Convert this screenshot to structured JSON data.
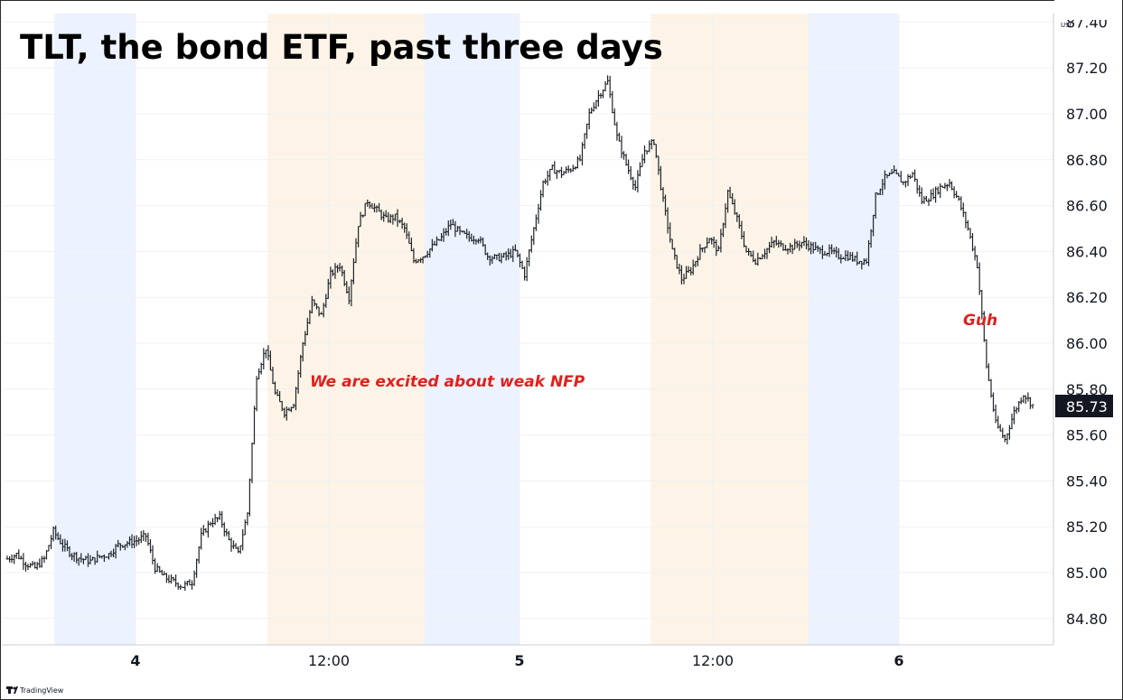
{
  "chart_data": {
    "type": "candlestick",
    "title": "TLT, the bond ETF, past three days",
    "currency": "USD",
    "ylim": [
      84.66,
      87.44
    ],
    "y_ticks": [
      "87.40",
      "87.20",
      "87.00",
      "86.80",
      "86.60",
      "86.40",
      "86.20",
      "86.00",
      "85.80",
      "85.60",
      "85.40",
      "85.20",
      "85.00",
      "84.80"
    ],
    "x_ticks": [
      {
        "label": "4",
        "bold": true
      },
      {
        "label": "12:00",
        "bold": false
      },
      {
        "label": "5",
        "bold": true
      },
      {
        "label": "12:00",
        "bold": false
      },
      {
        "label": "6",
        "bold": true
      }
    ],
    "last_price": "85.73",
    "annotations": [
      {
        "text": "We are excited about weak NFP"
      },
      {
        "text": "Guh"
      }
    ],
    "sessions": [
      "pre-market",
      "regular",
      "after-hours",
      "pre-market",
      "regular",
      "after-hours",
      "pre-market",
      "regular"
    ],
    "price_path": [
      85.06,
      85.08,
      85.04,
      85.02,
      85.06,
      85.18,
      85.12,
      85.08,
      85.06,
      85.05,
      85.07,
      85.08,
      85.12,
      85.13,
      85.14,
      85.16,
      85.02,
      84.98,
      84.96,
      84.94,
      84.96,
      85.16,
      85.22,
      85.24,
      85.14,
      85.08,
      85.26,
      85.86,
      85.98,
      85.78,
      85.7,
      85.74,
      86.0,
      86.18,
      86.12,
      86.3,
      86.34,
      86.2,
      86.52,
      86.62,
      86.58,
      86.54,
      86.55,
      86.5,
      86.36,
      86.38,
      86.42,
      86.46,
      86.52,
      86.48,
      86.46,
      86.46,
      86.38,
      86.37,
      86.38,
      86.4,
      86.3,
      86.5,
      86.7,
      86.76,
      86.74,
      86.76,
      86.8,
      87.0,
      87.08,
      87.14,
      86.9,
      86.78,
      86.68,
      86.84,
      86.88,
      86.62,
      86.4,
      86.28,
      86.32,
      86.4,
      86.46,
      86.4,
      86.66,
      86.54,
      86.4,
      86.36,
      86.4,
      86.44,
      86.42,
      86.42,
      86.44,
      86.42,
      86.4,
      86.4,
      86.38,
      86.38,
      86.36,
      86.36,
      86.64,
      86.72,
      86.74,
      86.7,
      86.74,
      86.62,
      86.64,
      86.68,
      86.7,
      86.62,
      86.5,
      86.34,
      85.9,
      85.65,
      85.58,
      85.7,
      85.78,
      85.73
    ]
  }
}
